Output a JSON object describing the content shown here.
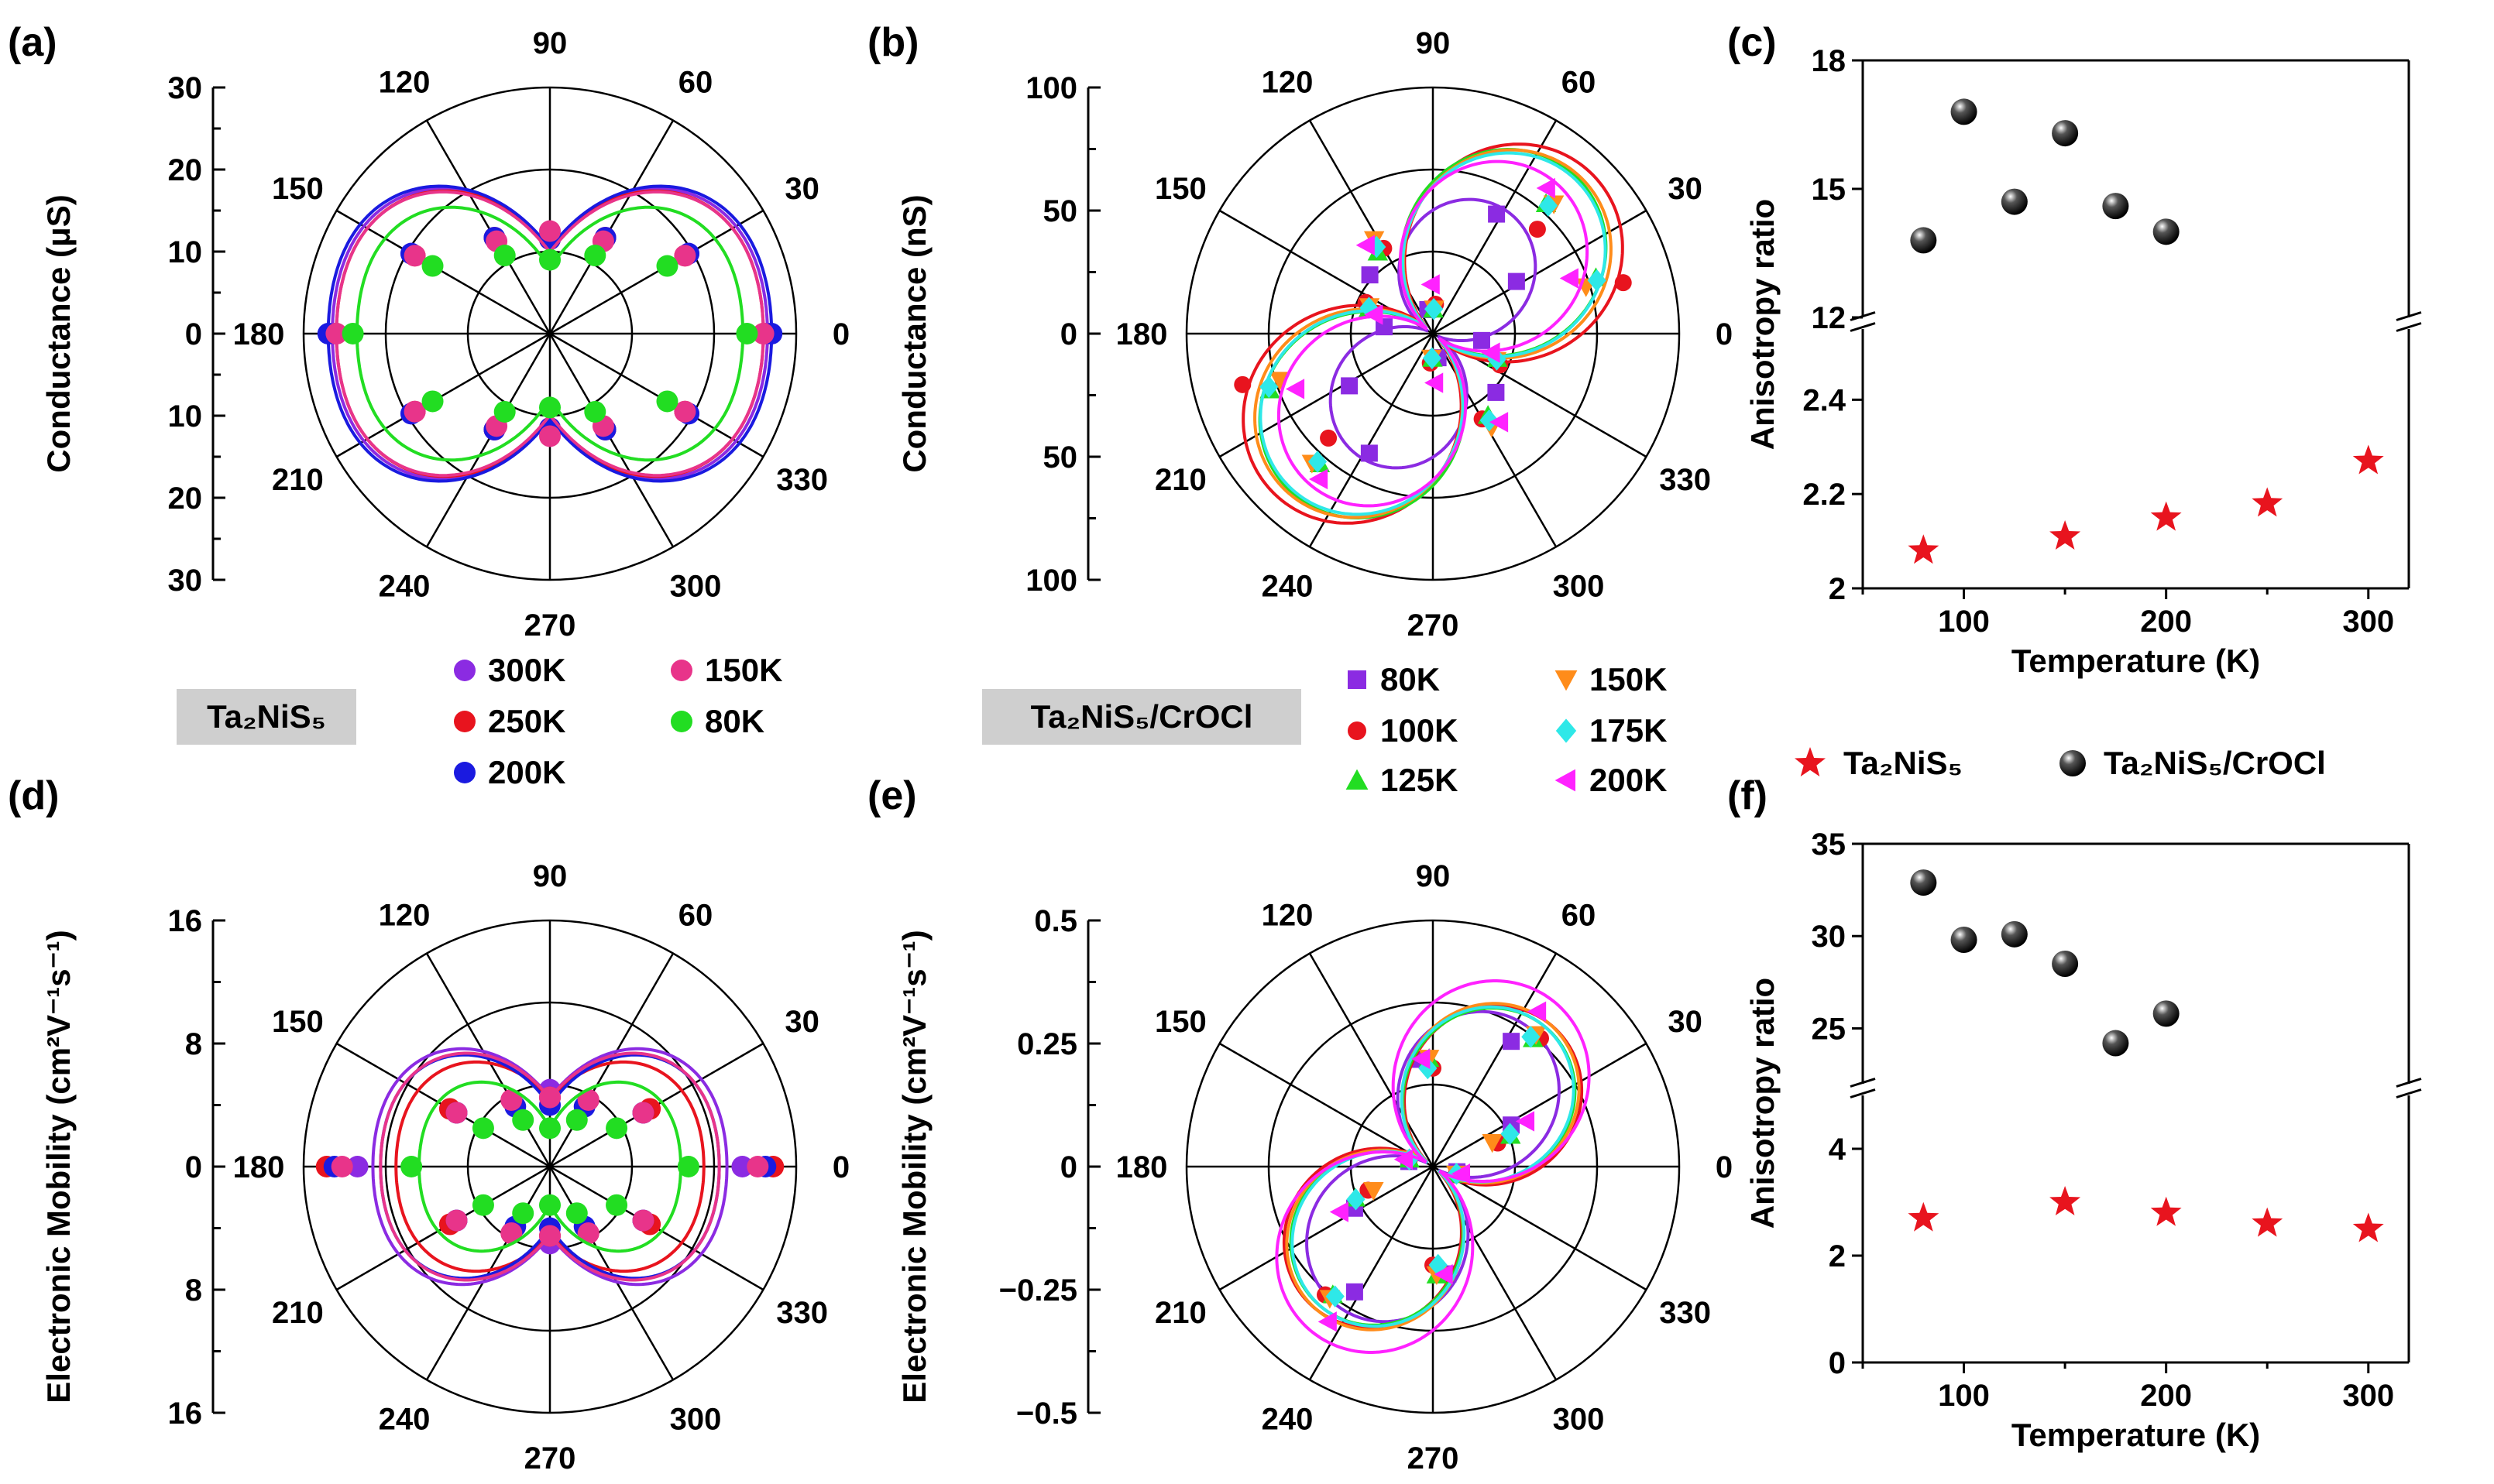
{
  "colors": {
    "300K": "#8B2BE2",
    "250K": "#E8141E",
    "200K": "#1A1AE0",
    "150K": "#E8348A",
    "80K": "#22DD22",
    "b80K": "#8B2BE2",
    "b100K": "#E8141E",
    "b125K": "#22DD22",
    "b150K": "#FF8C1A",
    "b175K": "#2EE8E8",
    "b200K": "#FF22FF",
    "star": "#E8141E",
    "sphere": "#111111"
  },
  "legend_a": {
    "label": "Ta₂NiS₅",
    "items": [
      {
        "label": "300K",
        "color": "#8B2BE2",
        "marker": "circle"
      },
      {
        "label": "150K",
        "color": "#E8348A",
        "marker": "circle"
      },
      {
        "label": "250K",
        "color": "#E8141E",
        "marker": "circle"
      },
      {
        "label": "80K",
        "color": "#22DD22",
        "marker": "circle"
      },
      {
        "label": "200K",
        "color": "#1A1AE0",
        "marker": "circle"
      }
    ]
  },
  "legend_b": {
    "label": "Ta₂NiS₅/CrOCl",
    "items": [
      {
        "label": "80K",
        "color": "#8B2BE2",
        "marker": "square"
      },
      {
        "label": "150K",
        "color": "#FF8C1A",
        "marker": "tri-down"
      },
      {
        "label": "100K",
        "color": "#E8141E",
        "marker": "circle"
      },
      {
        "label": "175K",
        "color": "#2EE8E8",
        "marker": "diamond"
      },
      {
        "label": "125K",
        "color": "#22DD22",
        "marker": "tri-up"
      },
      {
        "label": "200K",
        "color": "#FF22FF",
        "marker": "tri-left"
      }
    ]
  },
  "legend_cf": {
    "items": [
      {
        "label": "Ta₂NiS₅",
        "marker": "star"
      },
      {
        "label": "Ta₂NiS₅/CrOCl",
        "marker": "sphere"
      }
    ]
  },
  "chart_data": [
    {
      "panel": "(a)",
      "type": "polar",
      "ylabel": "Conductance (μS)",
      "r_max": 30,
      "r_ticks": [
        30,
        20,
        10,
        0,
        10,
        20,
        30
      ],
      "angle_labels": [
        "0",
        "30",
        "60",
        "90",
        "120",
        "150",
        "180",
        "210",
        "240",
        "270",
        "300",
        "330"
      ],
      "curve_shape": "peanut",
      "series": [
        {
          "name": "300K",
          "color": "#8B2BE2",
          "r0": 26.5,
          "r90": 10.5,
          "marker": "circle",
          "sample_r": [
            26.5,
            19.5,
            13.5,
            12.0
          ]
        },
        {
          "name": "250K",
          "color": "#E8141E",
          "r0": 26.0,
          "r90": 10.5,
          "marker": "circle",
          "sample_r": [
            26.0,
            19.0,
            13.5,
            11.5
          ]
        },
        {
          "name": "200K",
          "color": "#1A1AE0",
          "r0": 27.0,
          "r90": 10.5,
          "marker": "circle",
          "sample_r": [
            27.0,
            19.5,
            13.5,
            11.5
          ]
        },
        {
          "name": "150K",
          "color": "#E8348A",
          "r0": 26.0,
          "r90": 10.0,
          "marker": "circle",
          "sample_r": [
            26.0,
            19.0,
            13.0,
            12.5
          ]
        },
        {
          "name": "80K",
          "color": "#22DD22",
          "r0": 23.5,
          "r90": 8.0,
          "marker": "circle",
          "sample_r": [
            24.0,
            16.5,
            11.0,
            9.0
          ]
        }
      ]
    },
    {
      "panel": "(b)",
      "type": "polar",
      "ylabel": "Conductance (nS)",
      "r_max": 100,
      "r_ticks": [
        100,
        50,
        0,
        50,
        100
      ],
      "angle_labels": [
        "0",
        "30",
        "60",
        "90",
        "120",
        "150",
        "180",
        "210",
        "240",
        "270",
        "300",
        "330"
      ],
      "curve_shape": "lobe",
      "series": [
        {
          "name": "80K",
          "color": "#8B2BE2",
          "amp": 56,
          "phase": 62,
          "marker": "square",
          "sample_r": [
            20,
            40,
            55,
            10,
            35
          ]
        },
        {
          "name": "100K",
          "color": "#E8141E",
          "amp": 88,
          "phase": 45,
          "marker": "circle",
          "sample_r": [
            30,
            80,
            60,
            12,
            40
          ]
        },
        {
          "name": "125K",
          "color": "#22DD22",
          "amp": 83,
          "phase": 49,
          "marker": "tri-up",
          "sample_r": [
            28,
            70,
            70,
            10,
            40
          ]
        },
        {
          "name": "150K",
          "color": "#FF8C1A",
          "amp": 84,
          "phase": 47,
          "marker": "tri-down",
          "sample_r": [
            28,
            65,
            72,
            10,
            45
          ]
        },
        {
          "name": "175K",
          "color": "#2EE8E8",
          "amp": 82,
          "phase": 48,
          "marker": "diamond",
          "sample_r": [
            28,
            70,
            70,
            10,
            42
          ]
        },
        {
          "name": "200K",
          "color": "#FF22FF",
          "amp": 76,
          "phase": 52,
          "marker": "tri-left",
          "sample_r": [
            25,
            60,
            75,
            20,
            45
          ]
        }
      ]
    },
    {
      "panel": "(c)",
      "type": "scatter",
      "xlabel": "Temperature (K)",
      "ylabel": "Anisotropy ratio",
      "xlim": [
        50,
        320
      ],
      "x_ticks": [
        100,
        200,
        300
      ],
      "upper": {
        "ylim": [
          12,
          18
        ],
        "ticks": [
          12,
          15,
          18
        ]
      },
      "lower": {
        "ylim": [
          2.0,
          2.55
        ],
        "ticks": [
          2,
          2.2,
          2.4
        ]
      },
      "series": [
        {
          "name": "Ta₂NiS₅",
          "marker": "star",
          "color": "#E8141E",
          "axis": "lower",
          "x": [
            80,
            150,
            200,
            250,
            300
          ],
          "y": [
            2.08,
            2.11,
            2.15,
            2.18,
            2.27
          ]
        },
        {
          "name": "Ta₂NiS₅/CrOCl",
          "marker": "sphere",
          "color": "#111111",
          "axis": "upper",
          "x": [
            80,
            100,
            125,
            150,
            175,
            200
          ],
          "y": [
            13.8,
            16.8,
            14.7,
            16.3,
            14.6,
            14.0
          ]
        }
      ]
    },
    {
      "panel": "(d)",
      "type": "polar",
      "ylabel": "Electronic Mobility (cm²V⁻¹s⁻¹)",
      "r_max": 16,
      "r_ticks": [
        16,
        8,
        0,
        8,
        16
      ],
      "angle_labels": [
        "0",
        "30",
        "60",
        "90",
        "120",
        "150",
        "180",
        "210",
        "240",
        "270",
        "300",
        "330"
      ],
      "curve_shape": "peanut",
      "series": [
        {
          "name": "300K",
          "color": "#8B2BE2",
          "r0": 11.5,
          "r90": 4.5,
          "marker": "circle",
          "sample_r": [
            12.5,
            7.0,
            5.0,
            5.0
          ]
        },
        {
          "name": "250K",
          "color": "#E8141E",
          "r0": 10.0,
          "r90": 4.5,
          "marker": "circle",
          "sample_r": [
            14.5,
            7.5,
            5.0,
            4.5
          ]
        },
        {
          "name": "200K",
          "color": "#1A1AE0",
          "r0": 11.0,
          "r90": 4.0,
          "marker": "circle",
          "sample_r": [
            14.0,
            7.0,
            4.5,
            4.0
          ]
        },
        {
          "name": "150K",
          "color": "#E8348A",
          "r0": 11.0,
          "r90": 4.5,
          "marker": "circle",
          "sample_r": [
            13.5,
            7.0,
            5.0,
            4.5
          ]
        },
        {
          "name": "80K",
          "color": "#22DD22",
          "r0": 8.5,
          "r90": 2.5,
          "marker": "circle",
          "sample_r": [
            9.0,
            5.0,
            3.5,
            2.5
          ]
        }
      ]
    },
    {
      "panel": "(e)",
      "type": "polar",
      "ylabel": "Electronic Mobility (cm²V⁻¹s⁻¹)",
      "r_max": 0.5,
      "r_ticks": [
        "0.5",
        "0.25",
        "0",
        "−0.25",
        "−0.5"
      ],
      "angle_labels": [
        "0",
        "30",
        "60",
        "90",
        "120",
        "150",
        "180",
        "210",
        "240",
        "270",
        "300",
        "330"
      ],
      "curve_shape": "lobe",
      "series": [
        {
          "name": "80K",
          "color": "#8B2BE2",
          "amp": 0.33,
          "phase": 58,
          "marker": "square",
          "sample_r": [
            0.05,
            0.18,
            0.3,
            0.22
          ]
        },
        {
          "name": "100K",
          "color": "#E8141E",
          "amp": 0.36,
          "phase": 50,
          "marker": "circle",
          "sample_r": [
            0.05,
            0.14,
            0.34,
            0.2
          ]
        },
        {
          "name": "125K",
          "color": "#22DD22",
          "amp": 0.35,
          "phase": 52,
          "marker": "tri-up",
          "sample_r": [
            0.05,
            0.17,
            0.33,
            0.22
          ]
        },
        {
          "name": "150K",
          "color": "#FF8C1A",
          "amp": 0.36,
          "phase": 52,
          "marker": "tri-down",
          "sample_r": [
            0.05,
            0.13,
            0.34,
            0.22
          ]
        },
        {
          "name": "175K",
          "color": "#2EE8E8",
          "amp": 0.35,
          "phase": 53,
          "marker": "diamond",
          "sample_r": [
            0.05,
            0.17,
            0.33,
            0.2
          ]
        },
        {
          "name": "200K",
          "color": "#FF22FF",
          "amp": 0.4,
          "phase": 56,
          "marker": "tri-left",
          "sample_r": [
            0.06,
            0.21,
            0.38,
            0.22
          ]
        }
      ]
    },
    {
      "panel": "(f)",
      "type": "scatter",
      "xlabel": "Temperature (K)",
      "ylabel": "Anisotropy ratio",
      "xlim": [
        50,
        320
      ],
      "x_ticks": [
        100,
        200,
        300
      ],
      "upper": {
        "ylim": [
          22,
          35
        ],
        "ticks": [
          25,
          30,
          35
        ]
      },
      "lower": {
        "ylim": [
          0,
          5
        ],
        "ticks": [
          0,
          2,
          4
        ]
      },
      "series": [
        {
          "name": "Ta₂NiS₅",
          "marker": "star",
          "color": "#E8141E",
          "axis": "lower",
          "x": [
            80,
            150,
            200,
            250,
            300
          ],
          "y": [
            2.7,
            3.0,
            2.8,
            2.6,
            2.5
          ]
        },
        {
          "name": "Ta₂NiS₅/CrOCl",
          "marker": "sphere",
          "color": "#111111",
          "axis": "upper",
          "x": [
            80,
            100,
            125,
            150,
            175,
            200
          ],
          "y": [
            32.9,
            29.8,
            30.1,
            28.5,
            24.2,
            25.8
          ]
        }
      ]
    }
  ]
}
